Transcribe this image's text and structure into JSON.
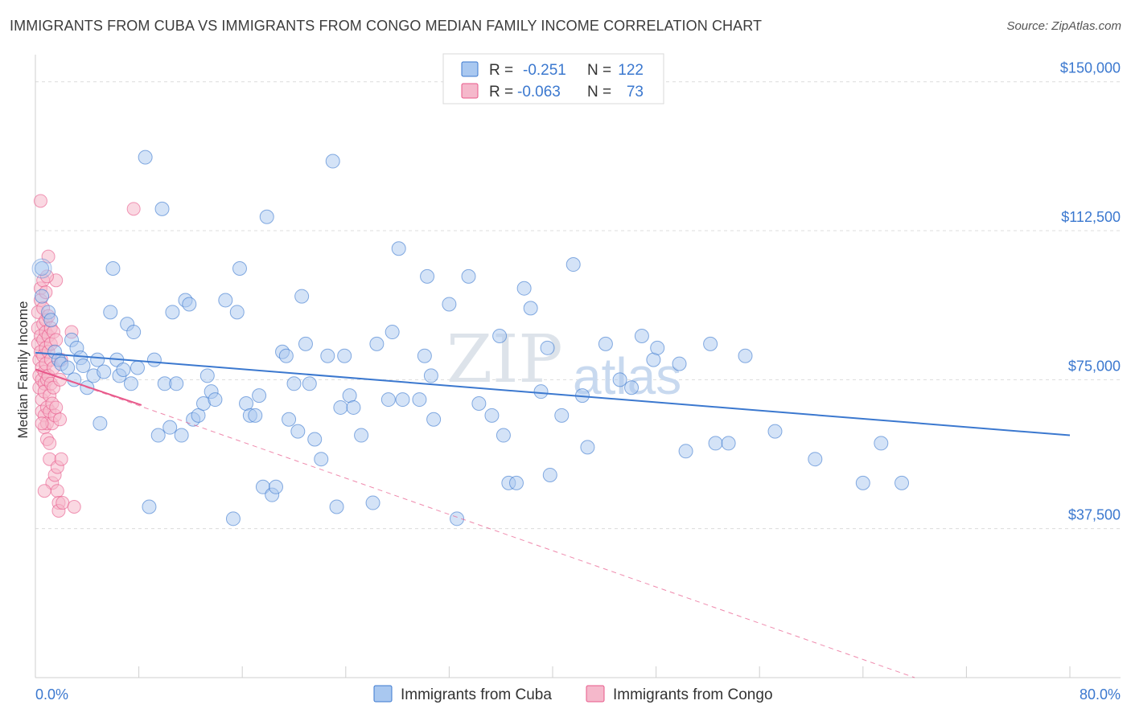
{
  "header": {
    "title": "IMMIGRANTS FROM CUBA VS IMMIGRANTS FROM CONGO MEDIAN FAMILY INCOME CORRELATION CHART",
    "source": "Source: ZipAtlas.com"
  },
  "watermark": {
    "part1": "ZIP",
    "part2": "atlas"
  },
  "legend": {
    "rows": [
      {
        "r_label": "R =",
        "r_value": "-0.251",
        "n_label": "N =",
        "n_value": "122",
        "color": "#a9c8f0"
      },
      {
        "r_label": "R =",
        "r_value": "-0.063",
        "n_label": "N =",
        "n_value": "73",
        "color": "#f5b8cb"
      }
    ]
  },
  "bottom_legend": {
    "items": [
      {
        "label": "Immigrants from Cuba",
        "color": "#a9c8f0"
      },
      {
        "label": "Immigrants from Congo",
        "color": "#f5b8cb"
      }
    ]
  },
  "chart_data": {
    "type": "scatter",
    "title": "IMMIGRANTS FROM CUBA VS IMMIGRANTS FROM CONGO MEDIAN FAMILY INCOME CORRELATION CHART",
    "xlabel": "",
    "ylabel": "Median Family Income",
    "xlim": [
      0,
      80
    ],
    "ylim": [
      0,
      155000
    ],
    "x_tick_labels": [
      "0.0%",
      "80.0%"
    ],
    "y_ticks": [
      37500,
      75000,
      112500,
      150000
    ],
    "y_tick_labels": [
      "$37,500",
      "$75,000",
      "$112,500",
      "$150,000"
    ],
    "colors": {
      "cuba": "#3b78cf",
      "cuba_fill": "#a9c8f0",
      "congo": "#e8588a",
      "congo_fill": "#f5b8cb"
    },
    "series": [
      {
        "name": "Immigrants from Cuba",
        "trend": {
          "x": [
            0,
            80
          ],
          "y": [
            81800,
            61000
          ]
        },
        "points": [
          [
            0.5,
            103000
          ],
          [
            0.5,
            96000
          ],
          [
            1.0,
            92000
          ],
          [
            1.2,
            90000
          ],
          [
            1.5,
            82000
          ],
          [
            1.8,
            80000
          ],
          [
            2.0,
            79000
          ],
          [
            2.5,
            78000
          ],
          [
            2.8,
            85000
          ],
          [
            3.0,
            75000
          ],
          [
            3.2,
            83000
          ],
          [
            3.5,
            80500
          ],
          [
            3.7,
            78500
          ],
          [
            4.0,
            73000
          ],
          [
            4.5,
            76000
          ],
          [
            4.8,
            80000
          ],
          [
            5.0,
            64000
          ],
          [
            5.3,
            77000
          ],
          [
            5.8,
            92000
          ],
          [
            6.0,
            103000
          ],
          [
            6.3,
            80000
          ],
          [
            6.5,
            76000
          ],
          [
            6.8,
            77500
          ],
          [
            7.1,
            89000
          ],
          [
            7.4,
            74000
          ],
          [
            7.6,
            87000
          ],
          [
            7.9,
            78000
          ],
          [
            8.5,
            131000
          ],
          [
            8.8,
            43000
          ],
          [
            9.2,
            80000
          ],
          [
            9.5,
            61000
          ],
          [
            9.8,
            118000
          ],
          [
            10.0,
            74000
          ],
          [
            10.4,
            63000
          ],
          [
            10.6,
            92000
          ],
          [
            10.9,
            74000
          ],
          [
            11.3,
            61000
          ],
          [
            11.6,
            95000
          ],
          [
            11.9,
            94000
          ],
          [
            12.2,
            65000
          ],
          [
            12.6,
            66000
          ],
          [
            13.0,
            69000
          ],
          [
            13.3,
            76000
          ],
          [
            13.6,
            72000
          ],
          [
            13.9,
            70000
          ],
          [
            14.7,
            95000
          ],
          [
            15.3,
            40000
          ],
          [
            15.6,
            92000
          ],
          [
            15.8,
            103000
          ],
          [
            16.3,
            69000
          ],
          [
            16.6,
            66000
          ],
          [
            17.0,
            66000
          ],
          [
            17.3,
            71000
          ],
          [
            17.6,
            48000
          ],
          [
            17.9,
            116000
          ],
          [
            18.3,
            46000
          ],
          [
            18.6,
            48000
          ],
          [
            19.1,
            82000
          ],
          [
            19.4,
            81000
          ],
          [
            19.6,
            65000
          ],
          [
            20.0,
            74000
          ],
          [
            20.3,
            62000
          ],
          [
            20.6,
            96000
          ],
          [
            20.9,
            84000
          ],
          [
            21.2,
            74000
          ],
          [
            21.6,
            60000
          ],
          [
            22.1,
            55000
          ],
          [
            22.6,
            81000
          ],
          [
            23.0,
            130000
          ],
          [
            23.3,
            43000
          ],
          [
            23.6,
            68000
          ],
          [
            23.9,
            81000
          ],
          [
            24.3,
            71000
          ],
          [
            24.6,
            68000
          ],
          [
            25.2,
            61000
          ],
          [
            26.1,
            44000
          ],
          [
            26.4,
            84000
          ],
          [
            27.3,
            70000
          ],
          [
            27.6,
            87000
          ],
          [
            28.1,
            108000
          ],
          [
            28.4,
            70000
          ],
          [
            29.7,
            70000
          ],
          [
            30.3,
            101000
          ],
          [
            30.1,
            81000
          ],
          [
            30.6,
            76000
          ],
          [
            30.8,
            65000
          ],
          [
            32.0,
            94000
          ],
          [
            32.6,
            40000
          ],
          [
            33.5,
            101000
          ],
          [
            34.3,
            69000
          ],
          [
            35.3,
            66000
          ],
          [
            35.9,
            86000
          ],
          [
            36.2,
            61000
          ],
          [
            36.6,
            49000
          ],
          [
            37.2,
            49000
          ],
          [
            37.8,
            98000
          ],
          [
            38.3,
            93000
          ],
          [
            39.1,
            72000
          ],
          [
            39.6,
            83000
          ],
          [
            39.8,
            51000
          ],
          [
            40.7,
            66000
          ],
          [
            41.6,
            104000
          ],
          [
            42.3,
            71000
          ],
          [
            42.7,
            58000
          ],
          [
            44.1,
            84000
          ],
          [
            45.2,
            75000
          ],
          [
            46.1,
            73000
          ],
          [
            46.9,
            86000
          ],
          [
            47.8,
            80000
          ],
          [
            48.1,
            83000
          ],
          [
            49.8,
            79000
          ],
          [
            50.3,
            57000
          ],
          [
            52.2,
            84000
          ],
          [
            52.6,
            59000
          ],
          [
            53.6,
            59000
          ],
          [
            54.9,
            81000
          ],
          [
            57.2,
            62000
          ],
          [
            60.3,
            55000
          ],
          [
            64.0,
            49000
          ],
          [
            65.4,
            59000
          ],
          [
            67.0,
            49000
          ]
        ]
      },
      {
        "name": "Immigrants from Congo",
        "trend": {
          "x": [
            0,
            8.2
          ],
          "y": [
            77600,
            68600
          ]
        },
        "trend_extended": {
          "x": [
            0,
            68
          ],
          "y": [
            77600,
            0
          ]
        },
        "points": [
          [
            0.2,
            92000
          ],
          [
            0.2,
            88000
          ],
          [
            0.2,
            84000
          ],
          [
            0.3,
            80000
          ],
          [
            0.3,
            76000
          ],
          [
            0.3,
            73000
          ],
          [
            0.4,
            98000
          ],
          [
            0.4,
            95000
          ],
          [
            0.4,
            86000
          ],
          [
            0.4,
            82000
          ],
          [
            0.5,
            78000
          ],
          [
            0.5,
            75000
          ],
          [
            0.5,
            70000
          ],
          [
            0.5,
            67000
          ],
          [
            0.6,
            100000
          ],
          [
            0.6,
            93000
          ],
          [
            0.6,
            89000
          ],
          [
            0.6,
            85000
          ],
          [
            0.6,
            81000
          ],
          [
            0.7,
            77000
          ],
          [
            0.7,
            74000
          ],
          [
            0.7,
            72000
          ],
          [
            0.7,
            66000
          ],
          [
            0.7,
            63000
          ],
          [
            0.8,
            97000
          ],
          [
            0.8,
            90000
          ],
          [
            0.8,
            87000
          ],
          [
            0.8,
            83000
          ],
          [
            0.8,
            79000
          ],
          [
            0.9,
            75000
          ],
          [
            0.9,
            68000
          ],
          [
            0.9,
            64000
          ],
          [
            0.9,
            60000
          ],
          [
            1.0,
            106000
          ],
          [
            1.0,
            91000
          ],
          [
            1.0,
            86000
          ],
          [
            1.0,
            82000
          ],
          [
            1.0,
            76000
          ],
          [
            1.1,
            71000
          ],
          [
            1.1,
            67000
          ],
          [
            1.1,
            59000
          ],
          [
            1.1,
            55000
          ],
          [
            1.2,
            88000
          ],
          [
            1.2,
            84000
          ],
          [
            1.2,
            80000
          ],
          [
            1.2,
            74000
          ],
          [
            1.3,
            69000
          ],
          [
            1.3,
            64000
          ],
          [
            1.3,
            49000
          ],
          [
            1.4,
            87000
          ],
          [
            1.4,
            78000
          ],
          [
            1.4,
            73000
          ],
          [
            1.5,
            66000
          ],
          [
            1.5,
            51000
          ],
          [
            1.6,
            100000
          ],
          [
            1.6,
            85000
          ],
          [
            1.6,
            68000
          ],
          [
            1.7,
            53000
          ],
          [
            1.7,
            47000
          ],
          [
            1.8,
            44000
          ],
          [
            1.8,
            42000
          ],
          [
            1.9,
            75000
          ],
          [
            1.9,
            65000
          ],
          [
            2.0,
            80000
          ],
          [
            2.0,
            55000
          ],
          [
            2.1,
            44000
          ],
          [
            0.4,
            120000
          ],
          [
            7.6,
            118000
          ],
          [
            0.5,
            64000
          ],
          [
            0.7,
            47000
          ],
          [
            2.8,
            87000
          ],
          [
            3.0,
            43000
          ],
          [
            0.9,
            101000
          ]
        ]
      }
    ]
  }
}
